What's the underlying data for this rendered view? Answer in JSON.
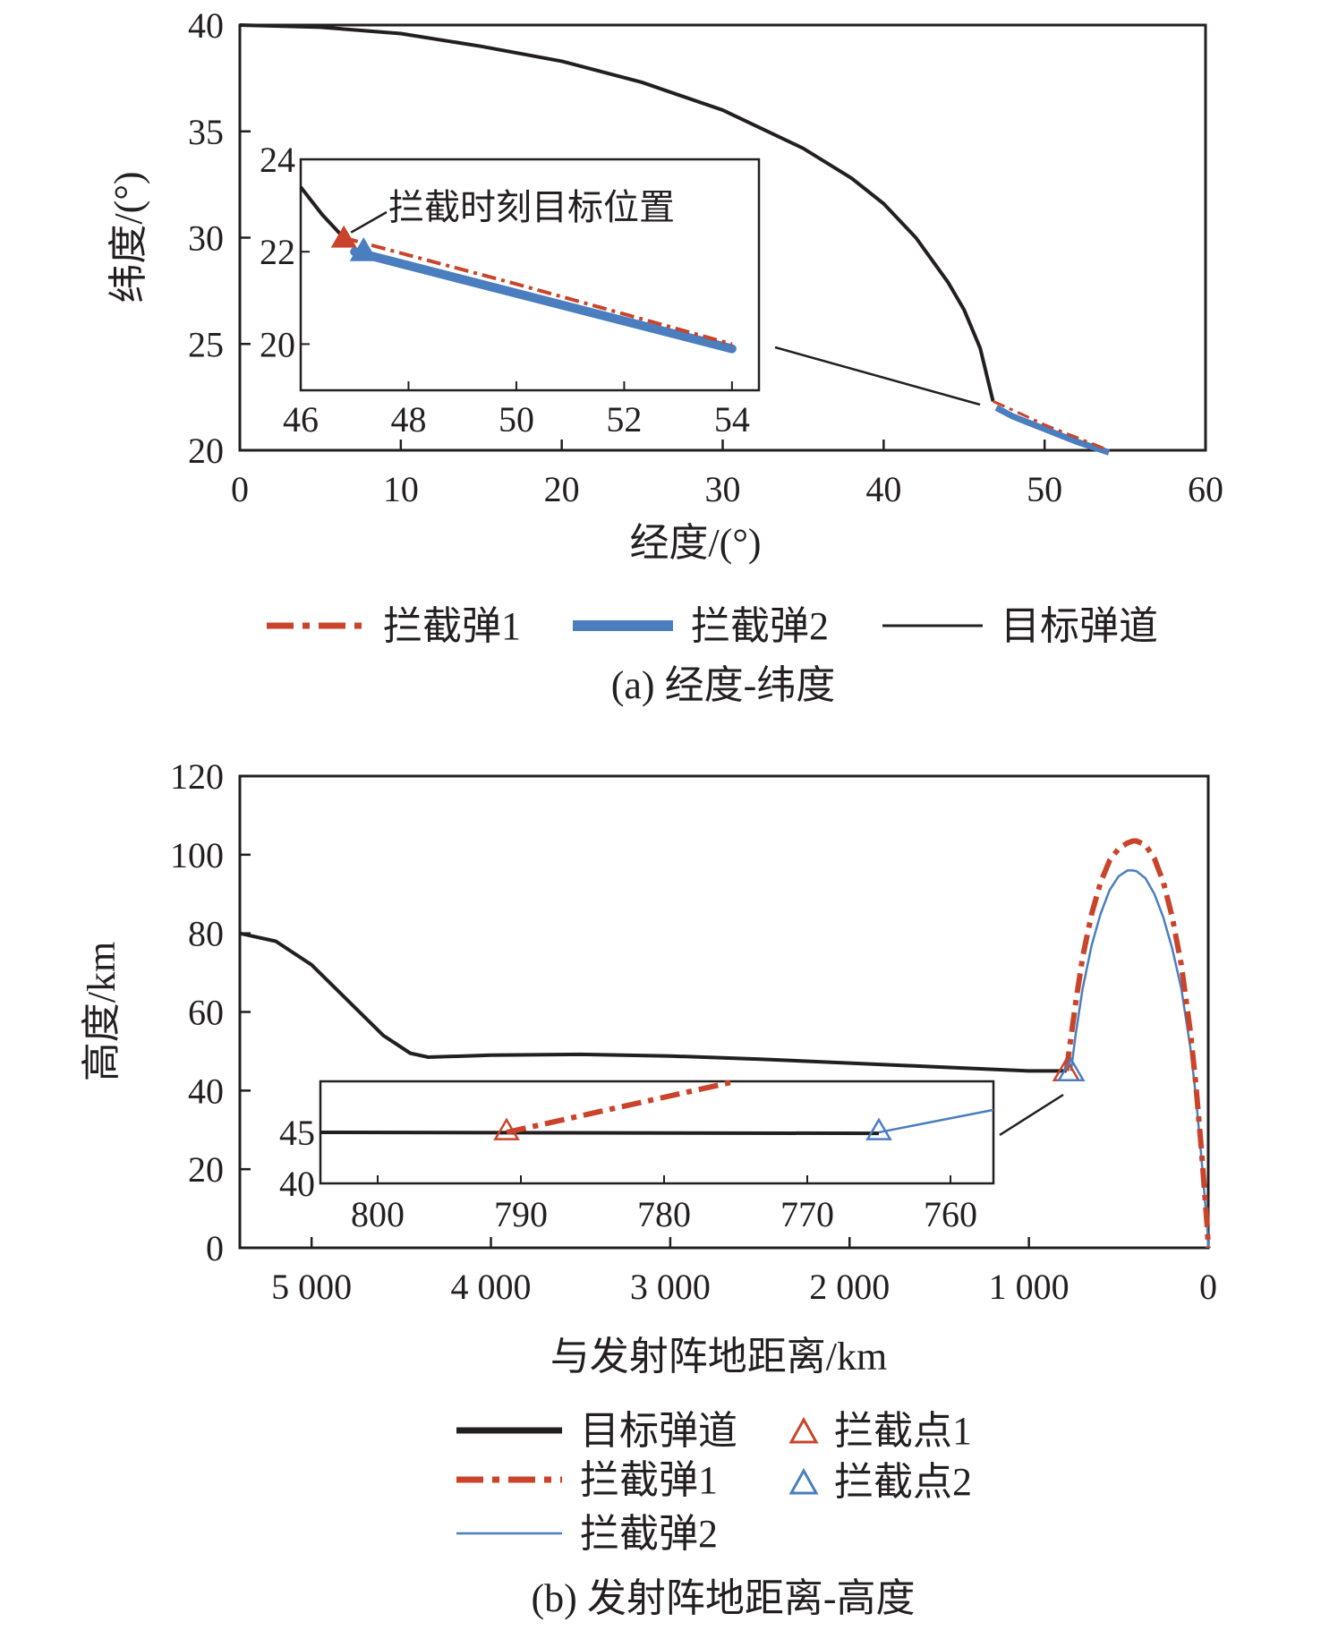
{
  "chart_data": [
    {
      "id": "a",
      "type": "line",
      "caption": "(a) 经度-纬度",
      "xlabel": "经度/(°)",
      "ylabel": "纬度/(°)",
      "xlim": [
        0,
        60
      ],
      "ylim": [
        20,
        40
      ],
      "xticks": [
        "0",
        "10",
        "20",
        "30",
        "40",
        "50",
        "60"
      ],
      "yticks": [
        "20",
        "25",
        "30",
        "35",
        "40"
      ],
      "legend": {
        "placement": "bottom",
        "entries": [
          "拦截弹1",
          "拦截弹2",
          "目标弹道"
        ]
      },
      "colors": {
        "target": "#231f20",
        "m1": "#c9442a",
        "m2": "#4a7ebf"
      },
      "series": [
        {
          "name": "目标弹道",
          "x": [
            0,
            5,
            10,
            15,
            20,
            25,
            30,
            35,
            38,
            40,
            42,
            44,
            45,
            46,
            46.8
          ],
          "y": [
            40,
            39.9,
            39.6,
            39.0,
            38.3,
            37.3,
            36.0,
            34.2,
            32.8,
            31.6,
            30.0,
            27.9,
            26.6,
            24.8,
            22.3
          ]
        },
        {
          "name": "拦截弹1",
          "x": [
            46.8,
            48,
            50,
            52,
            54
          ],
          "y": [
            22.3,
            21.9,
            21.2,
            20.6,
            20.0
          ]
        },
        {
          "name": "拦截弹2",
          "x": [
            47.0,
            48,
            50,
            52,
            54
          ],
          "y": [
            22.0,
            21.6,
            21.0,
            20.4,
            19.9
          ]
        }
      ],
      "inset": {
        "xlim": [
          46,
          54.5
        ],
        "ylim": [
          19,
          24
        ],
        "xticks": [
          "46",
          "48",
          "50",
          "52",
          "54"
        ],
        "yticks": [
          "20",
          "22",
          "24"
        ],
        "annotation": "拦截时刻目标位置",
        "target": {
          "x": [
            46,
            46.4,
            46.8
          ],
          "y": [
            23.4,
            22.8,
            22.3
          ]
        },
        "m1": {
          "x": [
            46.8,
            50,
            54
          ],
          "y": [
            22.3,
            21.3,
            20.0
          ]
        },
        "m2": {
          "x": [
            47.0,
            50,
            54
          ],
          "y": [
            22.0,
            21.1,
            19.9
          ]
        },
        "point1": {
          "x": 46.8,
          "y": 22.3
        },
        "point2": {
          "x": 47.1,
          "y": 22.1
        }
      }
    },
    {
      "id": "b",
      "type": "line",
      "caption": "(b) 发射阵地距离-高度",
      "xlabel": "与发射阵地距离/km",
      "ylabel": "高度/km",
      "xlim": [
        5400,
        0
      ],
      "ylim": [
        0,
        120
      ],
      "xticks": [
        "5 000",
        "4 000",
        "3 000",
        "2 000",
        "1 000",
        "0"
      ],
      "yticks": [
        "0",
        "20",
        "40",
        "60",
        "80",
        "100",
        "120"
      ],
      "legend": {
        "placement": "bottom",
        "entries": [
          "目标弹道",
          "拦截点1",
          "拦截弹1",
          "拦截点2",
          "拦截弹2"
        ]
      },
      "colors": {
        "target": "#231f20",
        "m1": "#c9442a",
        "m2": "#4a7ebf"
      },
      "series": [
        {
          "name": "目标弹道",
          "x": [
            5400,
            5200,
            5000,
            4800,
            4600,
            4450,
            4350,
            4000,
            3500,
            3000,
            2500,
            2000,
            1500,
            1000,
            790
          ],
          "y": [
            80,
            78,
            72,
            63,
            54,
            49.5,
            48.5,
            49,
            49.2,
            48.8,
            48,
            47,
            46,
            45,
            45
          ]
        },
        {
          "name": "拦截弹1",
          "x": [
            791,
            770,
            740,
            700,
            650,
            600,
            550,
            500,
            450,
            420,
            400,
            350,
            300,
            250,
            200,
            150,
            100,
            70,
            40,
            20,
            5,
            0
          ],
          "y": [
            45,
            52,
            62,
            74,
            85,
            93,
            98.5,
            101.5,
            103,
            103.5,
            103.5,
            102.5,
            99,
            93,
            84,
            72,
            55,
            42,
            26,
            14,
            5,
            0
          ]
        },
        {
          "name": "拦截弹2",
          "x": [
            765,
            740,
            700,
            650,
            600,
            550,
            500,
            450,
            420,
            400,
            350,
            300,
            250,
            200,
            150,
            100,
            70,
            40,
            20,
            5,
            0
          ],
          "y": [
            45,
            54,
            66,
            77,
            85,
            91,
            94.5,
            96,
            96,
            95.8,
            94,
            90,
            84,
            76,
            66,
            51,
            39,
            24,
            13,
            5,
            0
          ]
        }
      ],
      "points": [
        {
          "name": "拦截点1",
          "x": 791,
          "y": 45
        },
        {
          "name": "拦截点2",
          "x": 765,
          "y": 45
        }
      ],
      "inset": {
        "xlim": [
          804,
          757
        ],
        "ylim": [
          40,
          50
        ],
        "xticks": [
          "800",
          "790",
          "780",
          "770",
          "760"
        ],
        "yticks": [
          "40",
          "45"
        ],
        "target": {
          "x": [
            804,
            765
          ],
          "y": [
            45,
            44.9
          ]
        },
        "m1": {
          "x": [
            791,
            775
          ],
          "y": [
            45,
            50
          ]
        },
        "m2": {
          "x": [
            765,
            757
          ],
          "y": [
            45,
            47.2
          ]
        },
        "point1": {
          "x": 791,
          "y": 45
        },
        "point2": {
          "x": 765,
          "y": 45
        }
      }
    }
  ]
}
